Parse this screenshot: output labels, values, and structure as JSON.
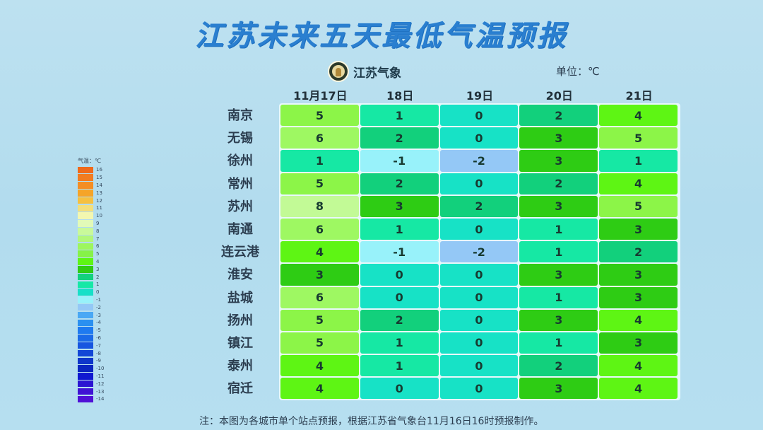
{
  "title": "江苏未来五天最低气温预报",
  "brand": {
    "name": "江苏气象",
    "logo_icon": "jiangsu-meteorological-emblem"
  },
  "unit_label": "单位：℃",
  "legend": {
    "title": "气温：℃",
    "items": [
      {
        "label": "16",
        "color": "#f06a1a"
      },
      {
        "label": "15",
        "color": "#f27c20"
      },
      {
        "label": "14",
        "color": "#f48e24"
      },
      {
        "label": "13",
        "color": "#f5a428"
      },
      {
        "label": "12",
        "color": "#f6c040"
      },
      {
        "label": "11",
        "color": "#f3df7a"
      },
      {
        "label": "10",
        "color": "#f3f7b0"
      },
      {
        "label": "9",
        "color": "#e2fab8"
      },
      {
        "label": "8",
        "color": "#c9f99a"
      },
      {
        "label": "7",
        "color": "#b2f77a"
      },
      {
        "label": "6",
        "color": "#9df65e"
      },
      {
        "label": "5",
        "color": "#86f248"
      },
      {
        "label": "4",
        "color": "#5ef514"
      },
      {
        "label": "3",
        "color": "#30cc14"
      },
      {
        "label": "2",
        "color": "#12d17e"
      },
      {
        "label": "1",
        "color": "#16e8a6"
      },
      {
        "label": "0",
        "color": "#17e0c8"
      },
      {
        "label": "-1",
        "color": "#98f2fa"
      },
      {
        "label": "-2",
        "color": "#94c8f6"
      },
      {
        "label": "-3",
        "color": "#4aa8f4"
      },
      {
        "label": "-4",
        "color": "#2a90f0"
      },
      {
        "label": "-5",
        "color": "#1e7af0"
      },
      {
        "label": "-6",
        "color": "#1a6ae8"
      },
      {
        "label": "-7",
        "color": "#1656e0"
      },
      {
        "label": "-8",
        "color": "#1246d6"
      },
      {
        "label": "-9",
        "color": "#0e36ca"
      },
      {
        "label": "-10",
        "color": "#0a26c0"
      },
      {
        "label": "-11",
        "color": "#1018d0"
      },
      {
        "label": "-12",
        "color": "#2a14d2"
      },
      {
        "label": "-13",
        "color": "#4012d4"
      },
      {
        "label": "-14",
        "color": "#5010d6"
      }
    ]
  },
  "note": "注：本图为各城市单个站点预报，根据江苏省气象台11月16日16时预报制作。",
  "chart_data": {
    "type": "heatmap",
    "title": "江苏未来五天最低气温预报",
    "unit": "℃",
    "columns": [
      "11月17日",
      "18日",
      "19日",
      "20日",
      "21日"
    ],
    "rows": [
      "南京",
      "无锡",
      "徐州",
      "常州",
      "苏州",
      "南通",
      "连云港",
      "淮安",
      "盐城",
      "扬州",
      "镇江",
      "泰州",
      "宿迁"
    ],
    "values": [
      [
        5,
        1,
        0,
        2,
        4
      ],
      [
        6,
        2,
        0,
        3,
        5
      ],
      [
        1,
        -1,
        -2,
        3,
        1
      ],
      [
        5,
        2,
        0,
        2,
        4
      ],
      [
        8,
        3,
        2,
        3,
        5
      ],
      [
        6,
        1,
        0,
        1,
        3
      ],
      [
        4,
        -1,
        -2,
        1,
        2
      ],
      [
        3,
        0,
        0,
        3,
        3
      ],
      [
        6,
        0,
        0,
        1,
        3
      ],
      [
        5,
        2,
        0,
        3,
        4
      ],
      [
        5,
        1,
        0,
        1,
        3
      ],
      [
        4,
        1,
        0,
        2,
        4
      ],
      [
        4,
        0,
        0,
        3,
        4
      ]
    ],
    "color_scale": {
      "8": "#c2fa96",
      "6": "#9ef862",
      "5": "#8cf548",
      "4": "#5ef514",
      "3": "#2ecc14",
      "2": "#12d07c",
      "1": "#16e8a4",
      "0": "#17e2c6",
      "-1": "#98f2fa",
      "-2": "#94c8f6"
    },
    "legend_range": [
      -14,
      16
    ],
    "legend_position": "left"
  }
}
